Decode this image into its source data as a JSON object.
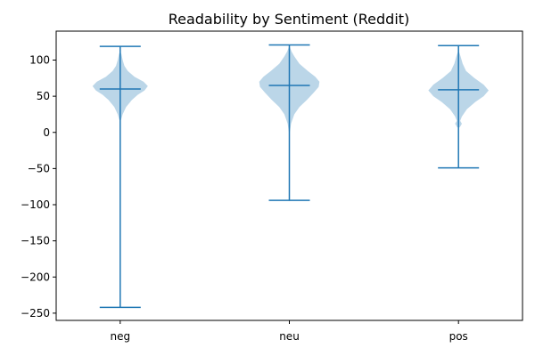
{
  "chart_data": {
    "type": "violin",
    "title": "Readability by Sentiment (Reddit)",
    "xlabel": "",
    "ylabel": "",
    "ylim": [
      -260,
      140
    ],
    "yticks": [
      100,
      50,
      0,
      -50,
      -100,
      -150,
      -200,
      -250
    ],
    "ytick_labels": [
      "100",
      "50",
      "0",
      "−50",
      "−100",
      "−150",
      "−200",
      "−250"
    ],
    "categories": [
      "neg",
      "neu",
      "pos"
    ],
    "grid": false,
    "colors": {
      "body": "#1f77b4",
      "lines": "#1f77b4"
    },
    "series": [
      {
        "category": "neg",
        "min": -242,
        "median": 60,
        "max": 119,
        "density": [
          [
            17,
            0.02
          ],
          [
            25,
            0.06
          ],
          [
            35,
            0.14
          ],
          [
            45,
            0.28
          ],
          [
            52,
            0.42
          ],
          [
            58,
            0.58
          ],
          [
            64,
            0.66
          ],
          [
            70,
            0.56
          ],
          [
            77,
            0.34
          ],
          [
            85,
            0.18
          ],
          [
            92,
            0.1
          ],
          [
            100,
            0.06
          ],
          [
            108,
            0.03
          ],
          [
            113,
            0.0
          ]
        ]
      },
      {
        "category": "neu",
        "min": -94,
        "median": 65,
        "max": 121,
        "density": [
          [
            0,
            0.01
          ],
          [
            12,
            0.04
          ],
          [
            25,
            0.12
          ],
          [
            35,
            0.24
          ],
          [
            45,
            0.42
          ],
          [
            55,
            0.58
          ],
          [
            63,
            0.7
          ],
          [
            70,
            0.72
          ],
          [
            77,
            0.62
          ],
          [
            85,
            0.44
          ],
          [
            95,
            0.24
          ],
          [
            105,
            0.12
          ],
          [
            112,
            0.05
          ],
          [
            120,
            0.0
          ]
        ]
      },
      {
        "category": "pos",
        "min": -49,
        "median": 59,
        "max": 120,
        "density": [
          [
            7,
            0.03
          ],
          [
            12,
            0.08
          ],
          [
            16,
            0.04
          ],
          [
            22,
            0.08
          ],
          [
            32,
            0.2
          ],
          [
            42,
            0.4
          ],
          [
            50,
            0.6
          ],
          [
            58,
            0.72
          ],
          [
            66,
            0.6
          ],
          [
            75,
            0.38
          ],
          [
            85,
            0.18
          ],
          [
            95,
            0.1
          ],
          [
            105,
            0.05
          ],
          [
            114,
            0.0
          ]
        ]
      }
    ]
  }
}
